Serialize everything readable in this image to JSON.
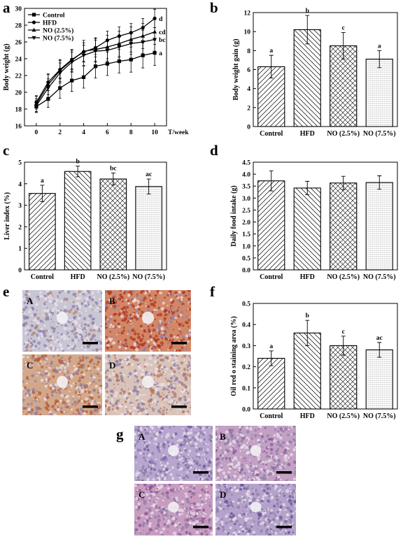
{
  "panels": {
    "a": "a",
    "b": "b",
    "c": "c",
    "d": "d",
    "e": "e",
    "f": "f",
    "g": "g"
  },
  "colors": {
    "axis": "#000000",
    "bar_fill": "#ffffff"
  },
  "chart_data": [
    {
      "id": "a",
      "type": "line",
      "xlabel": "T/week",
      "ylabel": "Body weight (g)",
      "xlim": [
        -1,
        11
      ],
      "ylim": [
        16,
        30
      ],
      "x_ticks": [
        0,
        2,
        4,
        6,
        8,
        10
      ],
      "y_ticks": [
        16,
        18,
        20,
        22,
        24,
        26,
        28,
        30
      ],
      "x": [
        0,
        1,
        2,
        3,
        4,
        5,
        6,
        7,
        8,
        9,
        10
      ],
      "legend_position": "top-left",
      "series": [
        {
          "name": "Control",
          "marker": "square",
          "values": [
            18.3,
            19.2,
            20.5,
            21.4,
            21.8,
            23.1,
            23.4,
            23.7,
            23.9,
            24.4,
            24.7
          ],
          "errors": [
            0.7,
            1.0,
            1.2,
            1.3,
            1.3,
            1.4,
            1.4,
            1.4,
            1.5,
            1.5,
            1.5
          ],
          "end_label": "a"
        },
        {
          "name": "HFD",
          "marker": "circle",
          "values": [
            18.8,
            21.2,
            22.7,
            23.9,
            24.8,
            25.3,
            26.2,
            26.7,
            27.1,
            27.7,
            28.8
          ],
          "errors": [
            0.8,
            1.0,
            1.1,
            1.1,
            1.1,
            1.1,
            1.1,
            1.1,
            1.1,
            1.1,
            1.1
          ],
          "end_label": "d"
        },
        {
          "name": "NO (2.5%)",
          "marker": "triangle-up",
          "values": [
            18.6,
            20.9,
            22.6,
            23.8,
            24.9,
            25.1,
            25.4,
            25.8,
            26.3,
            26.7,
            27.2
          ],
          "errors": [
            0.9,
            1.2,
            1.3,
            1.3,
            1.3,
            1.4,
            1.4,
            1.5,
            1.5,
            1.5,
            1.5
          ],
          "end_label": "cd"
        },
        {
          "name": "NO (7.5%)",
          "marker": "triangle-down",
          "values": [
            18.4,
            20.5,
            22.3,
            23.6,
            24.4,
            24.9,
            25.0,
            25.4,
            25.8,
            26.0,
            26.3
          ],
          "errors": [
            0.8,
            1.1,
            1.2,
            1.2,
            1.2,
            1.3,
            1.3,
            1.3,
            1.3,
            1.4,
            1.4
          ],
          "end_label": "bc"
        }
      ]
    },
    {
      "id": "b",
      "type": "bar",
      "ylabel": "Body weight gain (g)",
      "ylim": [
        0,
        12
      ],
      "y_ticks": [
        0,
        2,
        4,
        6,
        8,
        10,
        12
      ],
      "categories": [
        "Control",
        "HFD",
        "NO (2.5%)",
        "NO (7.5%)"
      ],
      "values": [
        6.3,
        10.2,
        8.5,
        7.1
      ],
      "errors": [
        1.2,
        1.5,
        1.4,
        0.9
      ],
      "sig_letters": [
        "a",
        "b",
        "c",
        "a"
      ],
      "patterns": [
        "diag-right",
        "diag-left",
        "crosshatch",
        "dots"
      ]
    },
    {
      "id": "c",
      "type": "bar",
      "ylabel": "Liver index (%)",
      "ylim": [
        0,
        5
      ],
      "y_ticks": [
        0,
        1,
        2,
        3,
        4,
        5
      ],
      "categories": [
        "Control",
        "HFD",
        "NO (2.5%)",
        "NO (7.5%)"
      ],
      "values": [
        3.55,
        4.57,
        4.22,
        3.87
      ],
      "errors": [
        0.38,
        0.25,
        0.28,
        0.35
      ],
      "sig_letters": [
        "a",
        "b",
        "bc",
        "ac"
      ],
      "patterns": [
        "diag-right",
        "diag-left",
        "crosshatch",
        "dots"
      ]
    },
    {
      "id": "d",
      "type": "bar",
      "ylabel": "Daily food intake (g)",
      "ylim": [
        0,
        4.5
      ],
      "y_ticks": [
        0,
        0.5,
        1.0,
        1.5,
        2.0,
        2.5,
        3.0,
        3.5,
        4.0,
        4.5
      ],
      "tick_labels": [
        "0.0",
        "0.5",
        "1.0",
        "1.5",
        "2.0",
        "2.5",
        "3.0",
        "3.5",
        "4.0",
        "4.5"
      ],
      "categories": [
        "Control",
        "HFD",
        "NO (2.5%)",
        "NO (7.5%)"
      ],
      "values": [
        3.72,
        3.42,
        3.63,
        3.65
      ],
      "errors": [
        0.42,
        0.28,
        0.28,
        0.28
      ],
      "sig_letters": [
        "",
        "",
        "",
        ""
      ],
      "patterns": [
        "diag-right",
        "diag-left",
        "crosshatch",
        "dots"
      ]
    },
    {
      "id": "f",
      "type": "bar",
      "ylabel": "Oil red o staining area (%)",
      "ylim": [
        0,
        0.5
      ],
      "y_ticks": [
        0,
        0.1,
        0.2,
        0.3,
        0.4,
        0.5
      ],
      "tick_labels": [
        "0.0",
        "0.1",
        "0.2",
        "0.3",
        "0.4",
        "0.5"
      ],
      "categories": [
        "Control",
        "HFD",
        "NO (2.5%)",
        "NO (7.5%)"
      ],
      "values": [
        0.24,
        0.36,
        0.3,
        0.28
      ],
      "errors": [
        0.035,
        0.06,
        0.045,
        0.035
      ],
      "sig_letters": [
        "a",
        "b",
        "c",
        "ac"
      ],
      "patterns": [
        "diag-right",
        "diag-left",
        "crosshatch",
        "dots"
      ]
    }
  ],
  "micrographs": {
    "e": [
      {
        "label": "A",
        "stain": "oil-red-o",
        "base": "#c9c6d4",
        "spot": "#b98a6e",
        "density": 0.12
      },
      {
        "label": "B",
        "stain": "oil-red-o",
        "base": "#d28868",
        "spot": "#b0361e",
        "density": 0.55
      },
      {
        "label": "C",
        "stain": "oil-red-o",
        "base": "#d3a88a",
        "spot": "#b65c34",
        "density": 0.35
      },
      {
        "label": "D",
        "stain": "oil-red-o",
        "base": "#d9c3b8",
        "spot": "#b8735a",
        "density": 0.22
      }
    ],
    "g": [
      {
        "label": "A",
        "stain": "h-and-e",
        "base": "#b7a6cf",
        "spot": "#6d5a9c",
        "density": 0.15
      },
      {
        "label": "B",
        "stain": "h-and-e",
        "base": "#c3a0c4",
        "spot": "#8a5a99",
        "density": 0.2
      },
      {
        "label": "C",
        "stain": "h-and-e",
        "base": "#c79cc0",
        "spot": "#8e4f8f",
        "density": 0.2
      },
      {
        "label": "D",
        "stain": "h-and-e",
        "base": "#b5a2cc",
        "spot": "#6b5696",
        "density": 0.18
      }
    ]
  }
}
